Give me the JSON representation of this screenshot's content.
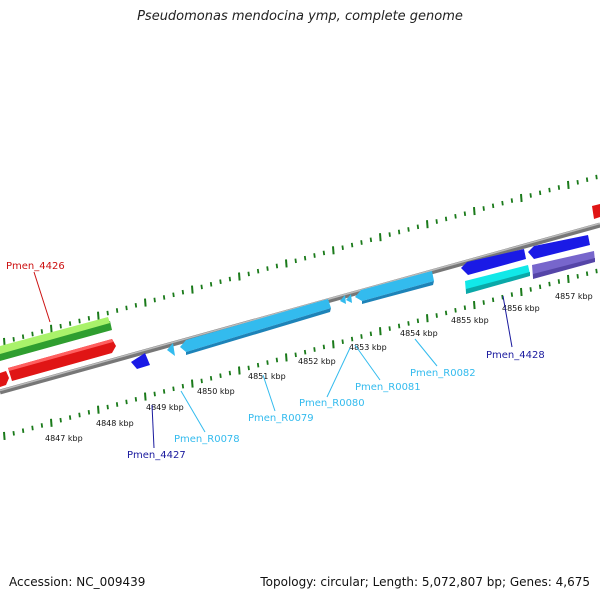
{
  "title": "Pseudomonas mendocina ymp, complete genome",
  "footer": {
    "accession": "Accession: NC_009439",
    "summary": "Topology: circular; Length: 5,072,807 bp; Genes: 4,675"
  },
  "colors": {
    "axis": "#888888",
    "tick": "#1a7a1a",
    "red_gene": "#ff1f1f",
    "green_gene": "#7bd12a",
    "blue_gene": "#1a1ae6",
    "rna": "#33bbee",
    "cyan_gene": "#11e8e8",
    "purple_gene": "#7766cc"
  },
  "kbp_labels": [
    "4847 kbp",
    "4848 kbp",
    "4849 kbp",
    "4850 kbp",
    "4851 kbp",
    "4852 kbp",
    "4853 kbp",
    "4854 kbp",
    "4855 kbp",
    "4856 kbp",
    "4857 kbp"
  ],
  "gene_labels": {
    "pmen_4426": "Pmen_4426",
    "pmen_4427": "Pmen_4427",
    "pmen_4428": "Pmen_4428",
    "pmen_r0078": "Pmen_R0078",
    "pmen_r0079": "Pmen_R0079",
    "pmen_r0080": "Pmen_R0080",
    "pmen_r0081": "Pmen_R0081",
    "pmen_r0082": "Pmen_R0082"
  }
}
